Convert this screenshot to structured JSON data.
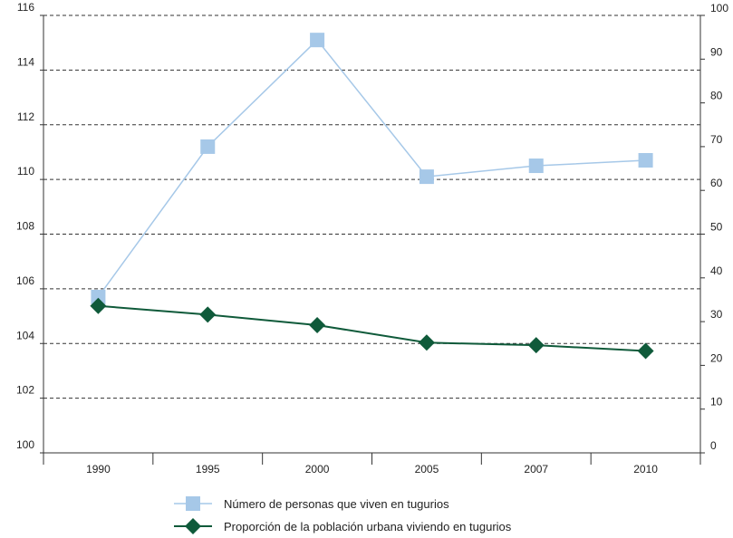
{
  "chart_data": {
    "type": "line",
    "categories": [
      "1990",
      "1995",
      "2000",
      "2005",
      "2007",
      "2010"
    ],
    "y_left": {
      "ticks": [
        "100",
        "102",
        "104",
        "106",
        "108",
        "110",
        "112",
        "114",
        "116"
      ],
      "range": [
        100,
        116
      ]
    },
    "y_right": {
      "ticks": [
        "0",
        "10",
        "20",
        "30",
        "40",
        "50",
        "60",
        "70",
        "80",
        "90",
        "100"
      ],
      "range": [
        0,
        100
      ]
    },
    "grid": "horizontal-dashed",
    "legend_position": "bottom",
    "series": [
      {
        "name": "Número de personas que viven en tugurios",
        "axis": "left",
        "marker": "square",
        "color": "#a6c8e8",
        "values": [
          105.7,
          111.2,
          115.1,
          110.1,
          110.5,
          110.7
        ]
      },
      {
        "name": "Proporción de la población urbana viviendo en tugurios",
        "axis": "right",
        "marker": "diamond",
        "color": "#0f5a3a",
        "values": [
          33.6,
          31.6,
          29.2,
          25.2,
          24.6,
          23.3
        ]
      }
    ]
  }
}
